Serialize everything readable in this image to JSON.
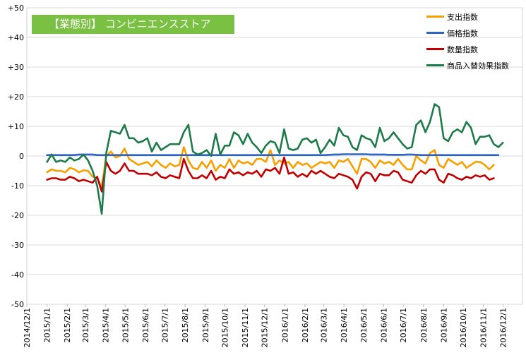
{
  "chart_data": {
    "type": "line",
    "title": "【業態別】 コンビニエンスストア",
    "ylim": [
      -50,
      50
    ],
    "y_ticks": [
      "+50",
      "+40",
      "+30",
      "+20",
      "+10",
      "0",
      "-10",
      "-20",
      "-30",
      "-40",
      "-50"
    ],
    "x_ticks": [
      "2014/12/1",
      "2015/1/1",
      "2015/2/1",
      "2015/3/1",
      "2015/4/1",
      "2015/5/1",
      "2015/6/1",
      "2015/7/1",
      "2015/8/1",
      "2015/9/1",
      "2015/10/1",
      "2015/11/1",
      "2015/12/1",
      "2016/1/1",
      "2016/2/1",
      "2016/3/1",
      "2016/4/1",
      "2016/5/1",
      "2016/6/1",
      "2016/7/1",
      "2016/8/1",
      "2016/9/1",
      "2016/10/1",
      "2016/11/1",
      "2016/12/1"
    ],
    "x_start": "2015-01-01",
    "x_step_days": 7,
    "grid": "horizontal",
    "legend_position": "top-right",
    "series": [
      {
        "name": "支出指数",
        "color": "#f5a000",
        "values": [
          -5.5,
          -4.5,
          -5,
          -5,
          -5.5,
          -4,
          -4.5,
          -5.5,
          -4.8,
          -5,
          -7,
          -7.5,
          -10.5,
          0,
          1.5,
          -0.5,
          0,
          2.5,
          -1,
          -2,
          -3,
          -2.5,
          -2,
          -3.5,
          -1.5,
          -3,
          -4,
          -2.5,
          -3.5,
          -3,
          3,
          -1.5,
          -4,
          -4.5,
          -2,
          -4,
          -1.5,
          -5,
          -3,
          -4,
          -1,
          -4,
          -1.5,
          -2.5,
          -2,
          -3,
          -1,
          -1,
          -2,
          2,
          -3,
          -1.5,
          -2.5,
          -2,
          -4,
          -2,
          -3,
          -2.5,
          -4,
          -3,
          -2,
          -2.5,
          -2,
          -4,
          -1.5,
          -2,
          -1,
          -3.5,
          -6,
          -1,
          -1,
          -2,
          -4,
          -1.5,
          -2.5,
          -2,
          -3,
          -1,
          -3,
          -4.5,
          -4.5,
          0,
          -1.5,
          -2.5,
          1,
          2,
          -3,
          -4,
          -1,
          -2,
          -3,
          -2,
          -4,
          -3,
          -2,
          -2,
          -3,
          -4.5,
          -3
        ]
      },
      {
        "name": "価格指数",
        "color": "#2e64c4",
        "values": [
          0.3,
          0.3,
          0.3,
          0.3,
          0.3,
          0.3,
          0.3,
          0.5,
          0.5,
          0.5,
          0.5,
          0.3,
          0.3,
          0.3,
          0.3,
          0.3,
          0.3,
          0.3,
          0.3,
          0.3,
          0.3,
          0.3,
          0.3,
          0.3,
          0.3,
          0.3,
          0.3,
          0.3,
          0.3,
          0.3,
          0.3,
          0.3,
          0.3,
          0.3,
          0.3,
          0.3,
          0.3,
          0.3,
          0.3,
          0.3,
          0.3,
          0.3,
          0.3,
          0.3,
          0.3,
          0.3,
          0.3,
          0.3,
          0.3,
          0.3,
          0.3,
          0.3,
          0.3,
          0.3,
          0.3,
          0.3,
          0.3,
          0.3,
          0.3,
          0.3,
          0.3,
          0.3,
          0.4,
          0.5,
          0.5,
          0.6,
          0.6,
          0.6,
          0.6,
          0.6,
          0.6,
          0.5,
          0.5,
          0.5,
          0.5,
          0.4,
          0.4,
          0.4,
          0.4,
          0.5,
          0.5,
          0.4,
          0.3,
          0.3,
          0.3,
          0.3,
          0.3,
          0.3,
          0.3,
          0.3,
          0.3,
          0.3,
          0.3,
          0.3,
          0.3,
          0.3,
          0.3,
          0.3,
          0.3,
          0.3
        ]
      },
      {
        "name": "数量指数",
        "color": "#c00000",
        "values": [
          -8,
          -7.5,
          -7.5,
          -8,
          -8,
          -7,
          -7.5,
          -8.5,
          -8,
          -8.5,
          -9,
          -7,
          -12,
          -2,
          -5,
          -6,
          -5,
          -2.5,
          -5,
          -5,
          -6,
          -6,
          -6,
          -6.5,
          -5.5,
          -7,
          -7.5,
          -6.5,
          -7,
          -7.5,
          -1,
          -5,
          -7.5,
          -7.5,
          -6.5,
          -7.5,
          -5,
          -8,
          -7,
          -7.5,
          -4.5,
          -6,
          -5.5,
          -6.5,
          -5.5,
          -6,
          -5,
          -7,
          -4.5,
          -5,
          -4,
          -6,
          -0.5,
          -6,
          -5.5,
          -7,
          -6,
          -7,
          -5,
          -6,
          -5,
          -6,
          -7,
          -7.5,
          -6,
          -6.5,
          -7,
          -8,
          -11,
          -7,
          -5.5,
          -6,
          -8.5,
          -6,
          -6.5,
          -6.5,
          -5,
          -5.5,
          -8,
          -8.5,
          -9,
          -6.5,
          -5,
          -6,
          -4.5,
          -4.5,
          -8,
          -9,
          -6,
          -6.5,
          -7.5,
          -8,
          -7,
          -7.5,
          -6.5,
          -7,
          -6.5,
          -8,
          -7.5
        ]
      },
      {
        "name": "商品入替効果指数",
        "color": "#1e7a4a",
        "values": [
          -2,
          0.5,
          -2,
          -1.5,
          -2,
          -0.5,
          -1.5,
          -1,
          0.5,
          -1.5,
          -5,
          -10,
          -19.5,
          1,
          8.5,
          8,
          7.5,
          10.5,
          6,
          6,
          4.5,
          5,
          6,
          1.5,
          4.5,
          2,
          3,
          4,
          4,
          4,
          8,
          10.5,
          1.5,
          0.5,
          1,
          2,
          0,
          7.5,
          0.5,
          3.5,
          3.5,
          8,
          7,
          4,
          7.5,
          4.5,
          3,
          1,
          3.5,
          5,
          4.5,
          1,
          9,
          2.5,
          2,
          2.5,
          5.5,
          6,
          4.5,
          5.5,
          1,
          3,
          5.5,
          3.5,
          9.5,
          7,
          6.5,
          3,
          2,
          7,
          6,
          5.5,
          3,
          9.5,
          5,
          6,
          8,
          6,
          4,
          2.5,
          3,
          10.5,
          12,
          8,
          11.5,
          17.5,
          16.5,
          6,
          5,
          8,
          9,
          8,
          11.5,
          9.5,
          4,
          6.5,
          6.5,
          7,
          4,
          3,
          4.5
        ]
      }
    ]
  }
}
